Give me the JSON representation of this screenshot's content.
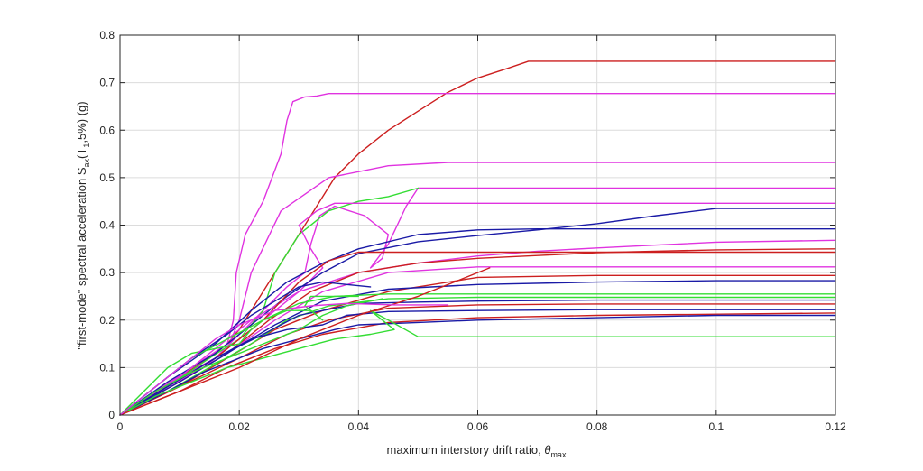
{
  "chart_data": {
    "type": "line",
    "title": "",
    "xlabel": {
      "text": "maximum interstory drift ratio, ",
      "symbol": "θ",
      "subscript": "max"
    },
    "ylabel": {
      "prefix": "\"first-mode\" spectral acceleration S",
      "sub1": "ax",
      "mid": "(T",
      "sub2": "1",
      "suffix": ",5%) (g)"
    },
    "xlim": [
      0,
      0.12
    ],
    "ylim": [
      0,
      0.8
    ],
    "xticks": [
      "0",
      "0.02",
      "0.04",
      "0.06",
      "0.08",
      "0.1",
      "0.12"
    ],
    "xtick_values": [
      0,
      0.02,
      0.04,
      0.06,
      0.08,
      0.1,
      0.12
    ],
    "yticks": [
      "0",
      "0.1",
      "0.2",
      "0.3",
      "0.4",
      "0.5",
      "0.6",
      "0.7",
      "0.8"
    ],
    "ytick_values": [
      0,
      0.1,
      0.2,
      0.3,
      0.4,
      0.5,
      0.6,
      0.7,
      0.8
    ],
    "grid": true,
    "legend": "none",
    "colors": {
      "red": "#cc1f1f",
      "magenta": "#e033e0",
      "blue": "#1a1aa6",
      "green": "#33dd33",
      "axis": "#262626",
      "grid": "#dcdcdc"
    },
    "series": [
      {
        "color": "red",
        "x": [
          0,
          0.005,
          0.01,
          0.015,
          0.018,
          0.02,
          0.022,
          0.025,
          0.028,
          0.03,
          0.033,
          0.036,
          0.04,
          0.045,
          0.05,
          0.055,
          0.06,
          0.065,
          0.0685,
          0.12
        ],
        "y": [
          0,
          0.04,
          0.08,
          0.12,
          0.15,
          0.18,
          0.22,
          0.28,
          0.34,
          0.38,
          0.44,
          0.5,
          0.55,
          0.6,
          0.64,
          0.68,
          0.71,
          0.73,
          0.745,
          0.745
        ]
      },
      {
        "color": "magenta",
        "x": [
          0,
          0.006,
          0.012,
          0.018,
          0.019,
          0.0195,
          0.021,
          0.024,
          0.027,
          0.028,
          0.029,
          0.031,
          0.033,
          0.035,
          0.12
        ],
        "y": [
          0,
          0.05,
          0.1,
          0.15,
          0.2,
          0.3,
          0.38,
          0.45,
          0.55,
          0.62,
          0.66,
          0.67,
          0.672,
          0.677,
          0.677
        ]
      },
      {
        "color": "magenta",
        "x": [
          0,
          0.008,
          0.014,
          0.018,
          0.02,
          0.022,
          0.027,
          0.035,
          0.045,
          0.055,
          0.06,
          0.12
        ],
        "y": [
          0,
          0.06,
          0.1,
          0.14,
          0.2,
          0.3,
          0.43,
          0.5,
          0.525,
          0.532,
          0.532,
          0.532
        ]
      },
      {
        "color": "magenta",
        "x": [
          0,
          0.01,
          0.016,
          0.02,
          0.024,
          0.028,
          0.031,
          0.032,
          0.0335,
          0.036,
          0.041,
          0.045,
          0.044,
          0.042,
          0.045,
          0.048,
          0.05,
          0.12
        ],
        "y": [
          0,
          0.08,
          0.12,
          0.17,
          0.22,
          0.27,
          0.3,
          0.36,
          0.42,
          0.44,
          0.42,
          0.38,
          0.33,
          0.31,
          0.36,
          0.44,
          0.478,
          0.478
        ]
      },
      {
        "color": "green",
        "x": [
          0,
          0.008,
          0.015,
          0.02,
          0.024,
          0.026,
          0.03,
          0.035,
          0.04,
          0.045,
          0.05
        ],
        "y": [
          0,
          0.06,
          0.12,
          0.16,
          0.22,
          0.3,
          0.38,
          0.43,
          0.45,
          0.46,
          0.478
        ]
      },
      {
        "color": "magenta",
        "x": [
          0,
          0.008,
          0.014,
          0.018,
          0.022,
          0.026,
          0.03,
          0.034,
          0.032,
          0.03,
          0.033,
          0.036,
          0.12
        ],
        "y": [
          0,
          0.06,
          0.1,
          0.14,
          0.18,
          0.22,
          0.26,
          0.31,
          0.35,
          0.4,
          0.43,
          0.446,
          0.446
        ]
      },
      {
        "color": "blue",
        "x": [
          0,
          0.008,
          0.016,
          0.022,
          0.028,
          0.034,
          0.04,
          0.05,
          0.06,
          0.07,
          0.08,
          0.09,
          0.1,
          0.12
        ],
        "y": [
          0,
          0.07,
          0.13,
          0.19,
          0.25,
          0.3,
          0.34,
          0.365,
          0.378,
          0.39,
          0.403,
          0.42,
          0.435,
          0.435
        ]
      },
      {
        "color": "blue",
        "x": [
          0,
          0.008,
          0.016,
          0.022,
          0.028,
          0.034,
          0.04,
          0.05,
          0.06,
          0.07,
          0.12
        ],
        "y": [
          0,
          0.08,
          0.15,
          0.22,
          0.28,
          0.32,
          0.35,
          0.38,
          0.39,
          0.392,
          0.392
        ]
      },
      {
        "color": "magenta",
        "x": [
          0,
          0.01,
          0.016,
          0.022,
          0.03,
          0.04,
          0.05,
          0.06,
          0.07,
          0.08,
          0.09,
          0.1,
          0.12
        ],
        "y": [
          0,
          0.08,
          0.14,
          0.2,
          0.26,
          0.3,
          0.32,
          0.335,
          0.345,
          0.352,
          0.358,
          0.364,
          0.368
        ]
      },
      {
        "color": "red",
        "x": [
          0,
          0.008,
          0.016,
          0.024,
          0.03,
          0.035,
          0.04,
          0.05,
          0.06,
          0.07,
          0.08,
          0.12
        ],
        "y": [
          0,
          0.06,
          0.12,
          0.2,
          0.28,
          0.325,
          0.343,
          0.343,
          0.343,
          0.343,
          0.343,
          0.343
        ]
      },
      {
        "color": "red",
        "x": [
          0,
          0.01,
          0.018,
          0.025,
          0.032,
          0.04,
          0.05,
          0.06,
          0.07,
          0.08,
          0.1,
          0.12
        ],
        "y": [
          0,
          0.07,
          0.13,
          0.2,
          0.26,
          0.3,
          0.32,
          0.33,
          0.336,
          0.342,
          0.348,
          0.35
        ]
      },
      {
        "color": "magenta",
        "x": [
          0,
          0.01,
          0.018,
          0.026,
          0.034,
          0.045,
          0.06,
          0.08,
          0.12
        ],
        "y": [
          0,
          0.07,
          0.13,
          0.2,
          0.26,
          0.3,
          0.312,
          0.312,
          0.312
        ]
      },
      {
        "color": "red",
        "x": [
          0,
          0.01,
          0.018,
          0.026,
          0.034,
          0.045,
          0.06,
          0.08,
          0.12
        ],
        "y": [
          0,
          0.06,
          0.12,
          0.18,
          0.22,
          0.26,
          0.29,
          0.294,
          0.294
        ]
      },
      {
        "color": "blue",
        "x": [
          0,
          0.01,
          0.018,
          0.026,
          0.034,
          0.045,
          0.06,
          0.08,
          0.1,
          0.12
        ],
        "y": [
          0,
          0.07,
          0.13,
          0.19,
          0.24,
          0.265,
          0.275,
          0.28,
          0.283,
          0.283
        ]
      },
      {
        "color": "green",
        "x": [
          0,
          0.006,
          0.012,
          0.018,
          0.024,
          0.03,
          0.036,
          0.045,
          0.06,
          0.08,
          0.12
        ],
        "y": [
          0,
          0.06,
          0.12,
          0.16,
          0.2,
          0.235,
          0.25,
          0.255,
          0.255,
          0.255,
          0.255
        ]
      },
      {
        "color": "green",
        "x": [
          0,
          0.008,
          0.015,
          0.022,
          0.028,
          0.035,
          0.045,
          0.06,
          0.08,
          0.12
        ],
        "y": [
          0,
          0.05,
          0.1,
          0.15,
          0.2,
          0.23,
          0.245,
          0.248,
          0.248,
          0.248
        ]
      },
      {
        "color": "blue",
        "x": [
          0,
          0.008,
          0.016,
          0.024,
          0.03,
          0.04,
          0.05,
          0.06,
          0.08,
          0.12
        ],
        "y": [
          0,
          0.06,
          0.12,
          0.17,
          0.21,
          0.235,
          0.238,
          0.24,
          0.242,
          0.242
        ]
      },
      {
        "color": "red",
        "x": [
          0,
          0.01,
          0.02,
          0.028,
          0.035,
          0.045,
          0.06,
          0.08,
          0.12
        ],
        "y": [
          0,
          0.06,
          0.12,
          0.17,
          0.2,
          0.225,
          0.232,
          0.234,
          0.234
        ]
      },
      {
        "color": "blue",
        "x": [
          0,
          0.008,
          0.016,
          0.022,
          0.028,
          0.034,
          0.038,
          0.045,
          0.06,
          0.08,
          0.12
        ],
        "y": [
          0,
          0.06,
          0.12,
          0.16,
          0.18,
          0.19,
          0.21,
          0.218,
          0.22,
          0.222,
          0.222
        ]
      },
      {
        "color": "red",
        "x": [
          0,
          0.01,
          0.018,
          0.026,
          0.034,
          0.045,
          0.06,
          0.08,
          0.12
        ],
        "y": [
          0,
          0.05,
          0.1,
          0.14,
          0.17,
          0.195,
          0.205,
          0.21,
          0.215
        ]
      },
      {
        "color": "blue",
        "x": [
          0,
          0.008,
          0.014,
          0.02,
          0.024,
          0.03,
          0.036,
          0.04,
          0.05,
          0.06,
          0.08,
          0.1,
          0.12
        ],
        "y": [
          0,
          0.05,
          0.09,
          0.12,
          0.14,
          0.16,
          0.18,
          0.19,
          0.195,
          0.2,
          0.205,
          0.21,
          0.21
        ]
      },
      {
        "color": "green",
        "x": [
          0,
          0.006,
          0.012,
          0.018,
          0.024,
          0.03,
          0.036,
          0.042,
          0.046,
          0.044,
          0.042,
          0.045,
          0.05,
          0.06,
          0.12
        ],
        "y": [
          0,
          0.04,
          0.07,
          0.1,
          0.12,
          0.14,
          0.16,
          0.17,
          0.18,
          0.2,
          0.22,
          0.2,
          0.165,
          0.165,
          0.165
        ]
      },
      {
        "color": "green",
        "x": [
          0,
          0.004,
          0.008,
          0.012,
          0.016,
          0.02,
          0.022,
          0.024,
          0.028,
          0.032,
          0.034,
          0.031,
          0.032,
          0.036,
          0.04
        ],
        "y": [
          0,
          0.05,
          0.1,
          0.13,
          0.14,
          0.15,
          0.18,
          0.2,
          0.22,
          0.22,
          0.2,
          0.23,
          0.25,
          0.25,
          0.25
        ]
      },
      {
        "color": "green",
        "x": [
          0,
          0.006,
          0.012,
          0.018,
          0.024,
          0.03,
          0.034,
          0.038,
          0.042,
          0.044
        ],
        "y": [
          0,
          0.05,
          0.09,
          0.12,
          0.15,
          0.18,
          0.21,
          0.23,
          0.24,
          0.245
        ]
      },
      {
        "color": "red",
        "x": [
          0,
          0.01,
          0.02,
          0.03,
          0.04,
          0.05,
          0.055,
          0.062
        ],
        "y": [
          0,
          0.05,
          0.1,
          0.16,
          0.21,
          0.25,
          0.275,
          0.31
        ]
      },
      {
        "color": "blue",
        "x": [
          0,
          0.006,
          0.012,
          0.018,
          0.022,
          0.026,
          0.03,
          0.034,
          0.038,
          0.042
        ],
        "y": [
          0,
          0.06,
          0.12,
          0.17,
          0.21,
          0.24,
          0.27,
          0.28,
          0.275,
          0.27
        ]
      },
      {
        "color": "magenta",
        "x": [
          0,
          0.006,
          0.012,
          0.016,
          0.02,
          0.026,
          0.032,
          0.038,
          0.046,
          0.055
        ],
        "y": [
          0,
          0.06,
          0.12,
          0.16,
          0.19,
          0.22,
          0.23,
          0.235,
          0.232,
          0.232
        ]
      }
    ]
  }
}
